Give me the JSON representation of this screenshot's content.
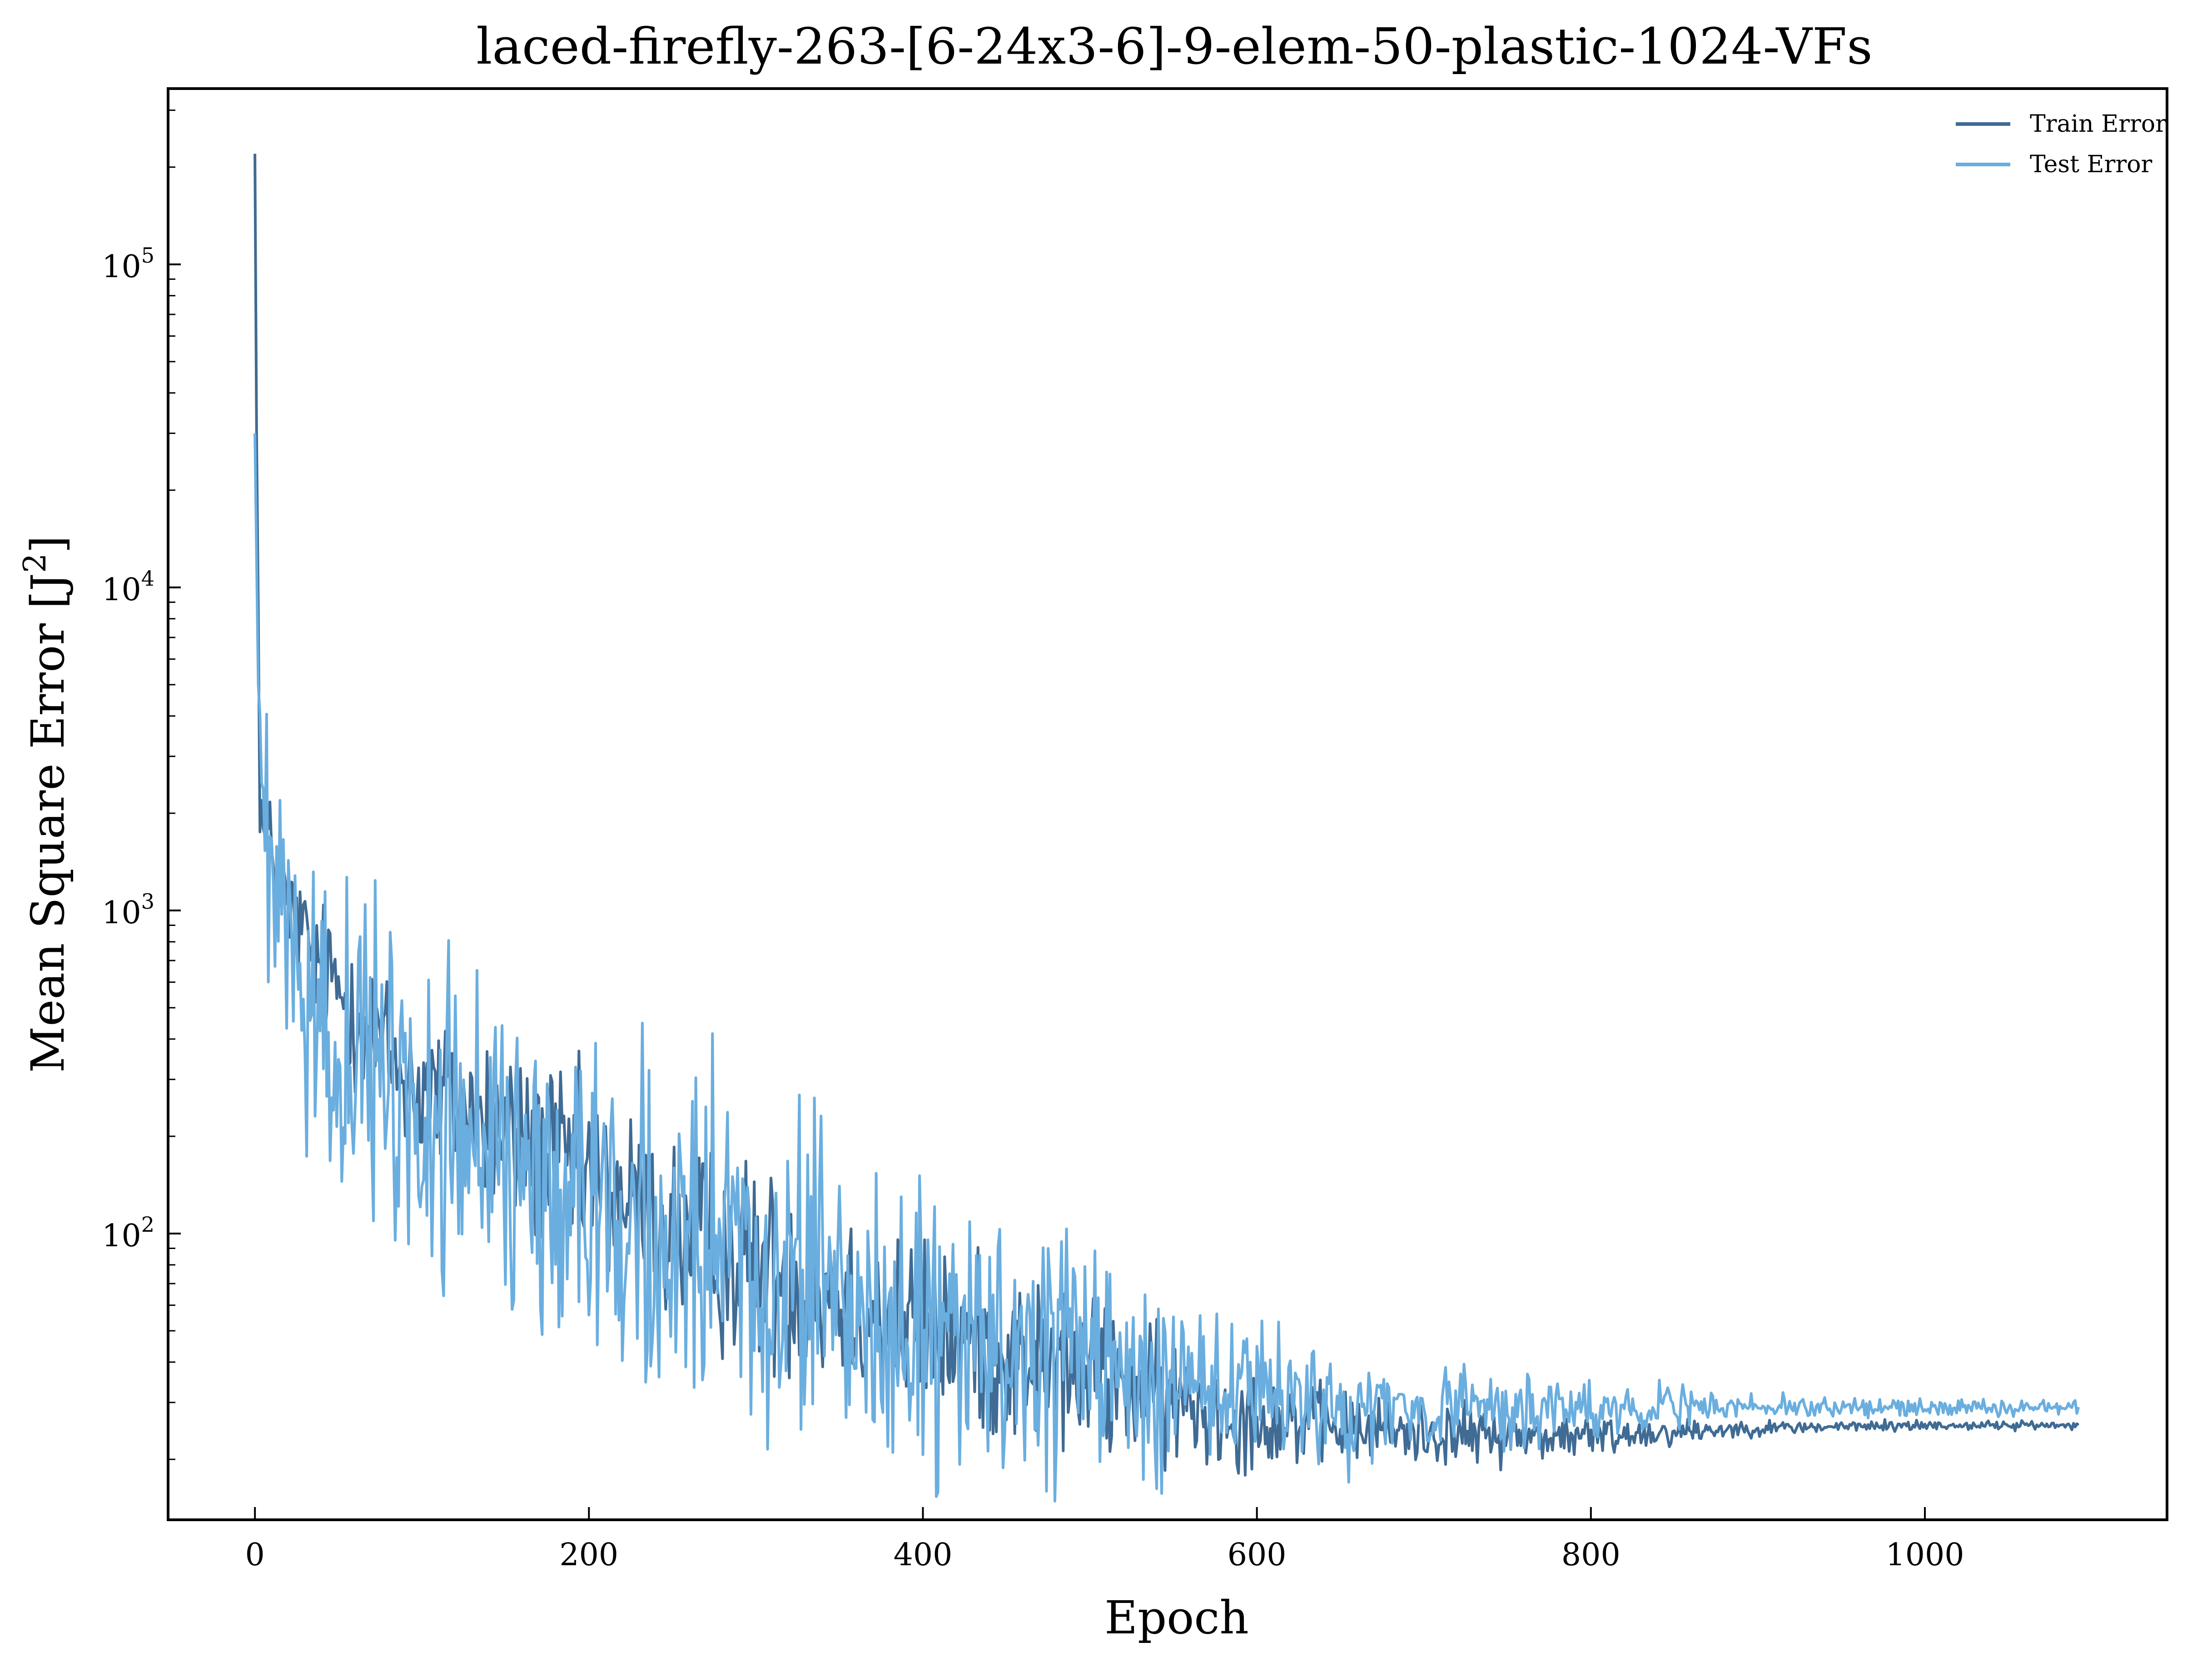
{
  "chart_data": {
    "type": "line",
    "title": "laced-firefly-263-[6-24x3-6]-9-elem-50-plastic-1024-VFs",
    "xlabel": "Epoch",
    "ylabel_main": "Mean Square Error [J",
    "ylabel_sup": "2",
    "ylabel_close": "]",
    "xlim": [
      -52,
      1145
    ],
    "ylim": [
      13,
      350000
    ],
    "yscale": "log",
    "grid": false,
    "legend_placement": "top-right",
    "xticks": [
      0,
      200,
      400,
      600,
      800,
      1000
    ],
    "yticks": [
      {
        "value": 100,
        "base": "10",
        "exp": "2"
      },
      {
        "value": 1000,
        "base": "10",
        "exp": "3"
      },
      {
        "value": 10000,
        "base": "10",
        "exp": "4"
      },
      {
        "value": 100000,
        "base": "10",
        "exp": "5"
      }
    ],
    "series": [
      {
        "name": "Train Error",
        "color": "#3f6b94",
        "anchors": [
          [
            0,
            220000
          ],
          [
            1,
            30000
          ],
          [
            3,
            2500
          ],
          [
            5,
            1700
          ],
          [
            10,
            1500
          ],
          [
            20,
            1000
          ],
          [
            40,
            650
          ],
          [
            60,
            500
          ],
          [
            80,
            350
          ],
          [
            100,
            280
          ],
          [
            150,
            200
          ],
          [
            200,
            150
          ],
          [
            250,
            100
          ],
          [
            300,
            80
          ],
          [
            350,
            65
          ],
          [
            400,
            50
          ],
          [
            450,
            42
          ],
          [
            500,
            36
          ],
          [
            550,
            30
          ],
          [
            600,
            27
          ],
          [
            650,
            25
          ],
          [
            700,
            24
          ],
          [
            750,
            23.5
          ],
          [
            800,
            23.5
          ],
          [
            850,
            24.5
          ],
          [
            900,
            25
          ],
          [
            1000,
            25.5
          ],
          [
            1092,
            25.5
          ]
        ],
        "noise": [
          [
            0,
            0.15
          ],
          [
            100,
            0.25
          ],
          [
            300,
            0.28
          ],
          [
            500,
            0.22
          ],
          [
            650,
            0.1
          ],
          [
            800,
            0.06
          ],
          [
            900,
            0.02
          ],
          [
            1092,
            0.01
          ]
        ]
      },
      {
        "name": "Test Error",
        "color": "#6aaedf",
        "anchors": [
          [
            0,
            30000
          ],
          [
            2,
            5000
          ],
          [
            5,
            2000
          ],
          [
            10,
            1000
          ],
          [
            20,
            700
          ],
          [
            40,
            450
          ],
          [
            60,
            330
          ],
          [
            80,
            270
          ],
          [
            100,
            230
          ],
          [
            150,
            170
          ],
          [
            200,
            130
          ],
          [
            250,
            95
          ],
          [
            300,
            75
          ],
          [
            350,
            60
          ],
          [
            400,
            48
          ],
          [
            450,
            42
          ],
          [
            500,
            38
          ],
          [
            550,
            34
          ],
          [
            600,
            31
          ],
          [
            650,
            29
          ],
          [
            700,
            28.5
          ],
          [
            750,
            28.5
          ],
          [
            800,
            28.5
          ],
          [
            850,
            29
          ],
          [
            900,
            29
          ],
          [
            1000,
            29
          ],
          [
            1092,
            29
          ]
        ],
        "noise": [
          [
            0,
            0.35
          ],
          [
            100,
            0.45
          ],
          [
            300,
            0.45
          ],
          [
            500,
            0.35
          ],
          [
            600,
            0.2
          ],
          [
            700,
            0.12
          ],
          [
            800,
            0.08
          ],
          [
            900,
            0.03
          ],
          [
            1092,
            0.02
          ]
        ]
      }
    ]
  }
}
